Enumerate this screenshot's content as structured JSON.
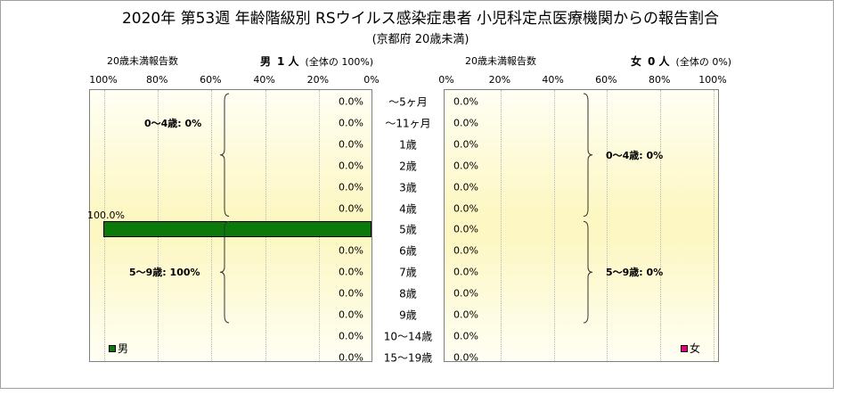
{
  "title": "2020年 第53週 年齢階級別 RSウイルス感染症患者 小児科定点医療機関からの報告割合",
  "subtitle": "(京都府 20歳未満)",
  "header": {
    "left_caption": "20歳未満報告数",
    "left_sex": "男",
    "left_count": "1 人",
    "left_share": "(全体の  100%)",
    "right_caption": "20歳未満報告数",
    "right_sex": "女",
    "right_count": "0 人",
    "right_share": "(全体の  0%)"
  },
  "colors": {
    "male": "#0b7a0b",
    "female": "#e6007e"
  },
  "chart_data": {
    "type": "bar",
    "orientation": "horizontal-population-pyramid",
    "categories": [
      "～5ヶ月",
      "～11ヶ月",
      "1歳",
      "2歳",
      "3歳",
      "4歳",
      "5歳",
      "6歳",
      "7歳",
      "8歳",
      "9歳",
      "10～14歳",
      "15～19歳"
    ],
    "left_axis_ticks": [
      "100%",
      "80%",
      "60%",
      "40%",
      "20%",
      "0%"
    ],
    "right_axis_ticks": [
      "0%",
      "20%",
      "40%",
      "60%",
      "80%",
      "100%"
    ],
    "xlim": [
      0,
      100
    ],
    "grid": true,
    "series": [
      {
        "name": "男",
        "values": [
          0,
          0,
          0,
          0,
          0,
          0,
          100,
          0,
          0,
          0,
          0,
          0,
          0
        ],
        "labels": [
          "0.0%",
          "0.0%",
          "0.0%",
          "0.0%",
          "0.0%",
          "0.0%",
          "100.0%",
          "0.0%",
          "0.0%",
          "0.0%",
          "0.0%",
          "0.0%",
          "0.0%"
        ]
      },
      {
        "name": "女",
        "values": [
          0,
          0,
          0,
          0,
          0,
          0,
          0,
          0,
          0,
          0,
          0,
          0,
          0
        ],
        "labels": [
          "0.0%",
          "0.0%",
          "0.0%",
          "0.0%",
          "0.0%",
          "0.0%",
          "0.0%",
          "0.0%",
          "0.0%",
          "0.0%",
          "0.0%",
          "0.0%",
          "0.0%"
        ]
      }
    ],
    "group_annotations": {
      "male": [
        "0～4歳: 0%",
        "5～9歳: 100%"
      ],
      "female": [
        "0～4歳: 0%",
        "5～9歳: 0%"
      ]
    },
    "legend": {
      "male_label": "男",
      "female_label": "女"
    }
  }
}
